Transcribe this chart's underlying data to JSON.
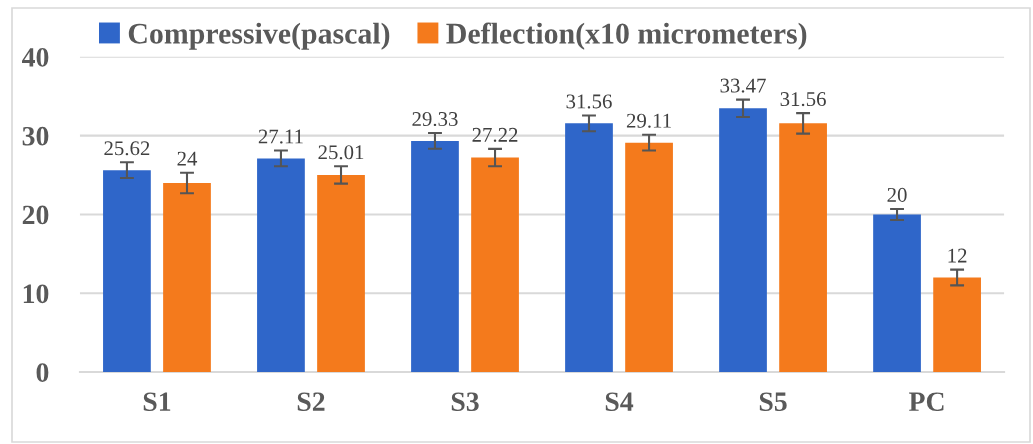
{
  "chart_data": {
    "type": "bar",
    "categories": [
      "S1",
      "S2",
      "S3",
      "S4",
      "S5",
      "PC"
    ],
    "series": [
      {
        "name": "Compressive(pascal)",
        "color": "#2f66c9",
        "values": [
          25.62,
          27.11,
          29.33,
          31.56,
          33.47,
          20
        ],
        "errors": [
          1,
          1,
          1,
          1,
          1.1,
          0.7
        ]
      },
      {
        "name": "Deflection(x10 micrometers)",
        "color": "#f47a1c",
        "values": [
          24,
          25.01,
          27.22,
          29.11,
          31.56,
          12
        ],
        "errors": [
          1.3,
          1.1,
          1.1,
          1,
          1.3,
          1
        ]
      }
    ],
    "ylim": [
      0,
      40
    ],
    "yticks": [
      0,
      10,
      20,
      30,
      40
    ],
    "grid": "y",
    "legend": "top",
    "data_labels": true
  }
}
